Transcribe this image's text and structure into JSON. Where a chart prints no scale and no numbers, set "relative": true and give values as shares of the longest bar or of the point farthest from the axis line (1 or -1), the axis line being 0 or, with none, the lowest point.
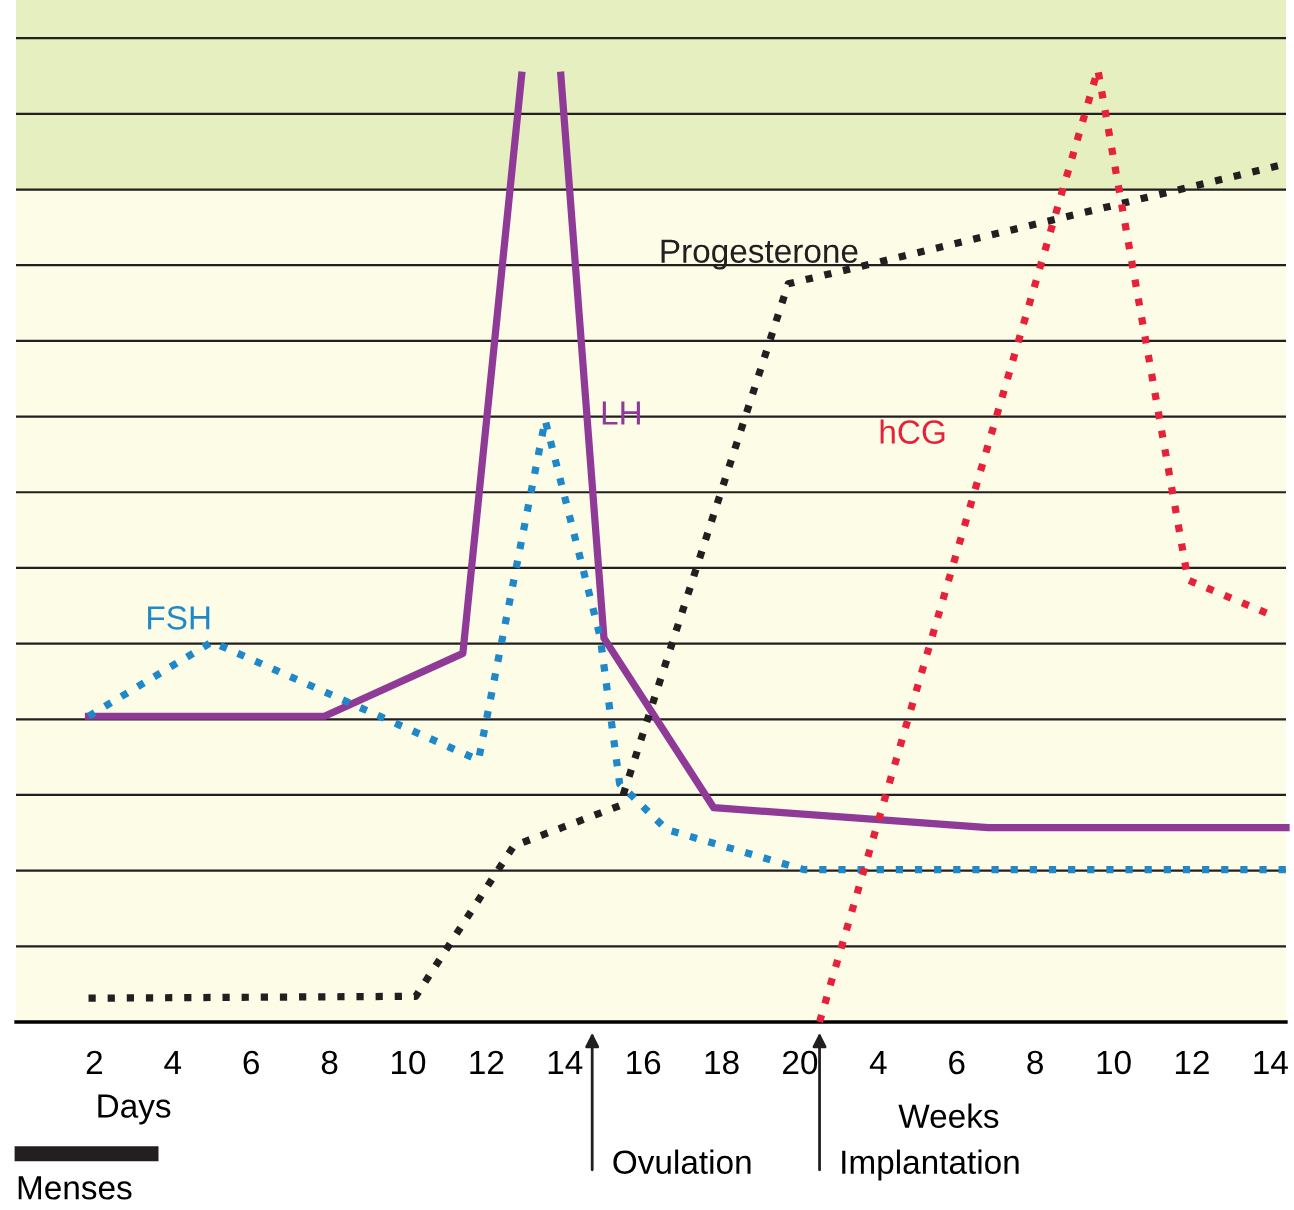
{
  "chart_data": {
    "type": "line",
    "relative": true,
    "xlim": [
      0,
      32.4
    ],
    "xticks": [
      2,
      4,
      6,
      8,
      10,
      12,
      14,
      16,
      18,
      20
    ],
    "x2lim": [
      -18,
      14.4
    ],
    "x2ticks": [
      4,
      6,
      8,
      10,
      12,
      14
    ],
    "grid": "y",
    "marker": "none",
    "series": [
      {
        "name": "LH",
        "color": "#8e3a96",
        "line_style": "solid",
        "x": [
          1.85,
          7.87,
          11.4,
          12.9,
          13.4,
          13.9,
          15.0,
          17.8,
          24.8,
          32.4
        ],
        "values": [
          0.321,
          0.321,
          0.387,
          0.994,
          null,
          0.994,
          0.403,
          0.225,
          0.204,
          0.204
        ]
      },
      {
        "name": "FSH",
        "color": "#1e88c8",
        "line_style": "dotted",
        "x": [
          1.85,
          5.0,
          11.8,
          13.5,
          14.9,
          15.4,
          16.6,
          20.1,
          32.4
        ],
        "values": [
          0.321,
          0.399,
          0.275,
          0.632,
          0.405,
          0.25,
          0.202,
          0.16,
          0.16
        ]
      },
      {
        "name": "Progesterone",
        "color": "#231f20",
        "line_style": "dotted",
        "x": [
          1.85,
          10.2,
          12.7,
          15.4,
          19.7,
          32.4
        ],
        "values": [
          0.025,
          0.027,
          0.185,
          0.227,
          0.775,
          0.901
        ]
      },
      {
        "name": "hCG",
        "color": "#e8213a",
        "line_style": "dotted",
        "x": [
          20.5,
          27.6,
          29.9,
          32.1
        ],
        "values": [
          0.0,
          1.0,
          0.464,
          0.426
        ]
      }
    ],
    "bands": [
      {
        "axis": "y",
        "from": 0.874,
        "to": 1.073,
        "color": "#e6efc0"
      }
    ],
    "annotations": [
      "Days",
      "Weeks",
      "Ovulation",
      "Implantation",
      "Menses"
    ]
  }
}
